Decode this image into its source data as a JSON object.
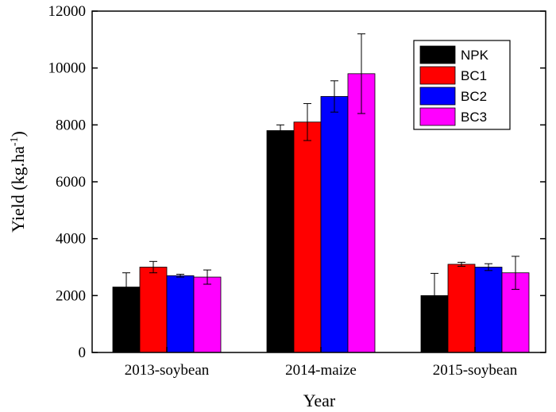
{
  "chart_data": {
    "type": "bar",
    "title": "",
    "xlabel": "Year",
    "ylabel_main": "Yield (kg.ha",
    "ylabel_sup": "-1",
    "ylabel_close": ")",
    "ylim": [
      0,
      12000
    ],
    "yticks": [
      0,
      2000,
      4000,
      6000,
      8000,
      10000,
      12000
    ],
    "categories": [
      "2013-soybean",
      "2014-maize",
      "2015-soybean"
    ],
    "series": [
      {
        "name": "NPK",
        "color": "#000000",
        "values": [
          2300,
          7800,
          2000
        ],
        "errors": [
          500,
          200,
          780
        ]
      },
      {
        "name": "BC1",
        "color": "#ff0000",
        "values": [
          3000,
          8100,
          3100
        ],
        "errors": [
          200,
          650,
          70
        ]
      },
      {
        "name": "BC2",
        "color": "#0000ff",
        "values": [
          2700,
          9000,
          3000
        ],
        "errors": [
          50,
          550,
          120
        ]
      },
      {
        "name": "BC3",
        "color": "#ff00ff",
        "values": [
          2650,
          9800,
          2800
        ],
        "errors": [
          250,
          1400,
          580
        ]
      }
    ],
    "legend_position": "top-right",
    "grid": false
  }
}
